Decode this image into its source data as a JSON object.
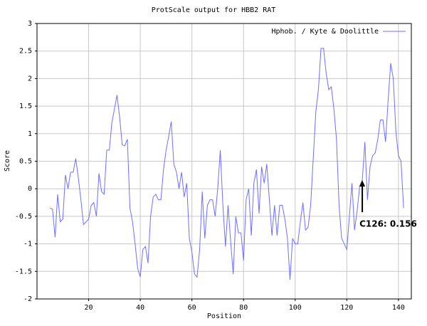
{
  "chart_data": {
    "type": "line",
    "title": "ProtScale output for HBB2 RAT",
    "xlabel": "Position",
    "ylabel": "Score",
    "x": [
      5,
      6,
      7,
      8,
      9,
      10,
      11,
      12,
      13,
      14,
      15,
      16,
      17,
      18,
      19,
      20,
      21,
      22,
      23,
      24,
      25,
      26,
      27,
      28,
      29,
      30,
      31,
      32,
      33,
      34,
      35,
      36,
      37,
      38,
      39,
      40,
      41,
      42,
      43,
      44,
      45,
      46,
      47,
      48,
      49,
      50,
      51,
      52,
      53,
      54,
      55,
      56,
      57,
      58,
      59,
      60,
      61,
      62,
      63,
      64,
      65,
      66,
      67,
      68,
      69,
      70,
      71,
      72,
      73,
      74,
      75,
      76,
      77,
      78,
      79,
      80,
      81,
      82,
      83,
      84,
      85,
      86,
      87,
      88,
      89,
      90,
      91,
      92,
      93,
      94,
      95,
      96,
      97,
      98,
      99,
      100,
      101,
      102,
      103,
      104,
      105,
      106,
      107,
      108,
      109,
      110,
      111,
      112,
      113,
      114,
      115,
      116,
      117,
      118,
      119,
      120,
      121,
      122,
      123,
      124,
      125,
      126,
      127,
      128,
      129,
      130,
      131,
      132,
      133,
      134,
      135,
      136,
      137,
      138,
      139,
      140,
      141,
      142
    ],
    "series": [
      {
        "name": "Hphob. / Kyte & Doolittle",
        "color": "#6f6fff",
        "values": [
          -0.35,
          -0.37,
          -0.88,
          -0.1,
          -0.6,
          -0.55,
          0.25,
          0.0,
          0.3,
          0.3,
          0.55,
          0.2,
          -0.2,
          -0.65,
          -0.6,
          -0.55,
          -0.3,
          -0.25,
          -0.5,
          0.28,
          -0.05,
          -0.1,
          0.7,
          0.7,
          1.2,
          1.45,
          1.7,
          1.3,
          0.8,
          0.78,
          0.9,
          -0.35,
          -0.6,
          -1.0,
          -1.45,
          -1.6,
          -1.1,
          -1.05,
          -1.35,
          -0.5,
          -0.15,
          -0.1,
          -0.2,
          -0.2,
          0.35,
          0.7,
          0.95,
          1.22,
          0.45,
          0.3,
          0.0,
          0.3,
          -0.15,
          0.1,
          -0.9,
          -1.15,
          -1.55,
          -1.6,
          -1.1,
          -0.05,
          -0.9,
          -0.3,
          -0.2,
          -0.2,
          -0.5,
          0.0,
          0.7,
          -0.3,
          -1.05,
          -0.3,
          -0.95,
          -1.55,
          -0.5,
          -0.8,
          -0.8,
          -1.3,
          -0.2,
          0.0,
          -0.85,
          0.1,
          0.35,
          -0.45,
          0.4,
          0.1,
          0.45,
          -0.2,
          -0.85,
          -0.3,
          -0.85,
          -0.3,
          -0.3,
          -0.55,
          -0.9,
          -1.65,
          -0.9,
          -1.0,
          -1.0,
          -0.6,
          -0.25,
          -0.75,
          -0.7,
          -0.3,
          0.55,
          1.4,
          1.8,
          2.55,
          2.55,
          2.1,
          1.8,
          1.85,
          1.45,
          0.9,
          -0.3,
          -0.9,
          -1.0,
          -1.1,
          -0.5,
          0.1,
          -0.75,
          -0.4,
          0.05,
          0.156,
          0.85,
          -0.2,
          0.4,
          0.6,
          0.65,
          0.9,
          1.25,
          1.25,
          0.85,
          1.6,
          2.28,
          2.0,
          1.05,
          0.6,
          0.5,
          -0.35
        ]
      }
    ],
    "xlim": [
      0,
      145
    ],
    "ylim": [
      -2,
      3
    ],
    "xticks": [
      20,
      40,
      60,
      80,
      100,
      120,
      140
    ],
    "yticks": [
      -2,
      -1.5,
      -1,
      -0.5,
      0,
      0.5,
      1,
      1.5,
      2,
      2.5,
      3
    ],
    "grid": true,
    "legend": "top-right",
    "annotation": {
      "text": "C126: 0.156",
      "x": 126,
      "y": 0.156
    }
  }
}
